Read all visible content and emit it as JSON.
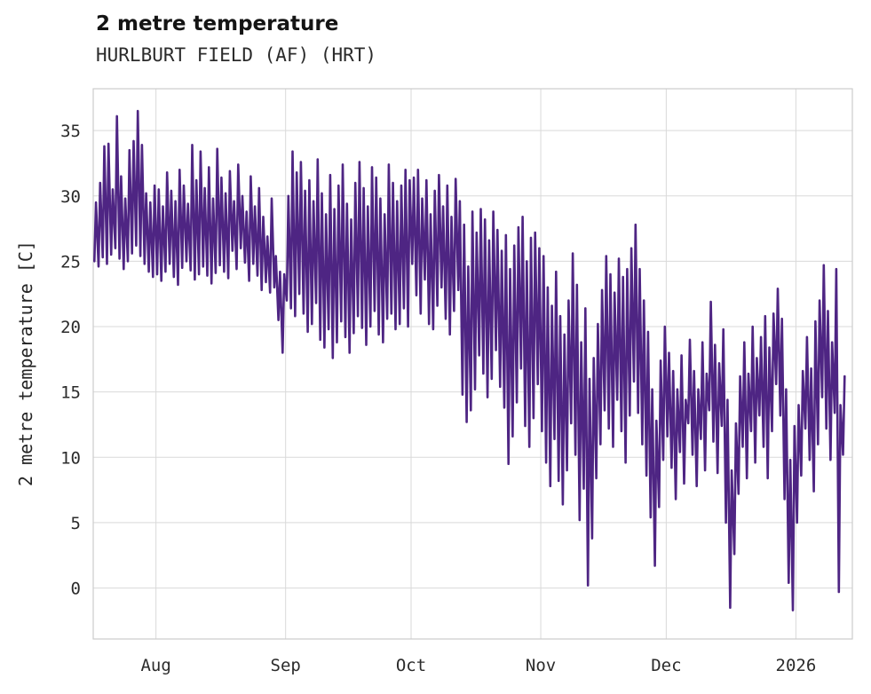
{
  "chart_data": {
    "type": "line",
    "title": "2 metre temperature",
    "subtitle": "HURLBURT FIELD (AF) (HRT)",
    "xlabel": "",
    "ylabel": "2 metre temperature [C]",
    "legend": "none",
    "grid": "on",
    "line_color": "#4e2583",
    "grid_color": "#d9d9d9",
    "border_color": "#cccccc",
    "text_color": "#2b2b2b",
    "ylim": [
      -3.9,
      38.2
    ],
    "xlim": [
      0,
      181.5
    ],
    "y_ticks": [
      0,
      5,
      10,
      15,
      20,
      25,
      30,
      35
    ],
    "x_ticks": [
      {
        "label": "Aug",
        "day": 15
      },
      {
        "label": "Sep",
        "day": 46
      },
      {
        "label": "Oct",
        "day": 76
      },
      {
        "label": "Nov",
        "day": 107
      },
      {
        "label": "Dec",
        "day": 137
      },
      {
        "label": "2026",
        "day": 168
      }
    ],
    "x_unit": "day_index_from_series_start",
    "series": [
      {
        "name": "2 metre temperature [C]",
        "daily_min": [
          25.0,
          24.6,
          25.3,
          24.8,
          25.5,
          26.0,
          25.2,
          24.4,
          25.0,
          25.6,
          26.2,
          25.4,
          24.8,
          24.2,
          23.8,
          24.0,
          23.5,
          24.2,
          24.8,
          23.8,
          23.2,
          24.5,
          25.0,
          24.3,
          23.6,
          24.0,
          24.6,
          23.9,
          23.3,
          24.1,
          24.7,
          24.2,
          23.7,
          25.8,
          24.4,
          26.0,
          24.9,
          23.5,
          24.8,
          23.9,
          22.8,
          23.4,
          22.6,
          23.0,
          20.5,
          18.0,
          22.0,
          21.4,
          20.8,
          22.5,
          21.0,
          19.6,
          20.2,
          21.8,
          19.0,
          18.4,
          19.8,
          17.6,
          18.8,
          20.4,
          19.2,
          18.0,
          19.5,
          20.8,
          19.9,
          18.6,
          20.0,
          21.2,
          19.4,
          18.8,
          20.6,
          21.0,
          19.8,
          20.2,
          21.4,
          20.0,
          24.8,
          22.4,
          21.0,
          23.6,
          20.2,
          19.8,
          21.6,
          23.0,
          20.6,
          19.4,
          21.2,
          22.8,
          14.8,
          12.7,
          13.6,
          15.2,
          17.8,
          16.4,
          14.6,
          16.0,
          18.2,
          15.4,
          13.8,
          9.5,
          11.6,
          14.2,
          16.8,
          12.4,
          10.8,
          13.0,
          15.6,
          12.0,
          9.6,
          7.8,
          11.4,
          8.2,
          6.4,
          9.0,
          12.6,
          10.2,
          5.2,
          7.6,
          0.2,
          3.8,
          8.4,
          11.0,
          13.6,
          12.2,
          10.8,
          14.4,
          12.0,
          9.6,
          13.2,
          15.8,
          13.4,
          11.0,
          8.6,
          5.4,
          1.7,
          6.2,
          9.8,
          11.6,
          9.2,
          6.8,
          10.4,
          8.0,
          12.6,
          10.2,
          7.8,
          11.4,
          9.0,
          13.6,
          11.2,
          8.8,
          12.4,
          5.0,
          -1.5,
          2.6,
          7.2,
          10.8,
          8.4,
          12.0,
          9.6,
          13.2,
          10.8,
          8.4,
          12.0,
          15.6,
          13.2,
          6.8,
          0.4,
          -1.7,
          5.0,
          8.6,
          12.2,
          9.8,
          7.4,
          11.0,
          14.6,
          12.2,
          9.8,
          13.4,
          -0.3,
          10.2
        ],
        "daily_max": [
          29.5,
          31.0,
          33.8,
          34.0,
          30.5,
          36.1,
          31.5,
          29.8,
          33.5,
          34.2,
          36.5,
          33.9,
          30.2,
          29.5,
          30.8,
          30.5,
          29.2,
          31.8,
          30.4,
          29.6,
          32.0,
          30.8,
          29.4,
          33.9,
          31.2,
          33.4,
          30.6,
          32.2,
          29.8,
          33.6,
          31.4,
          30.2,
          31.9,
          29.6,
          32.4,
          30.0,
          28.8,
          31.5,
          29.2,
          30.6,
          28.4,
          26.9,
          29.8,
          25.4,
          24.2,
          24.0,
          30.0,
          33.4,
          31.8,
          32.6,
          30.4,
          31.2,
          29.6,
          32.8,
          30.2,
          28.6,
          31.6,
          29.0,
          30.8,
          32.4,
          29.4,
          28.2,
          31.0,
          32.6,
          30.6,
          29.2,
          32.2,
          31.4,
          29.8,
          28.6,
          32.4,
          31.0,
          29.6,
          30.8,
          32.0,
          31.2,
          31.4,
          32.0,
          29.8,
          31.2,
          28.6,
          30.4,
          31.6,
          29.2,
          30.8,
          28.4,
          31.3,
          29.6,
          27.8,
          24.6,
          28.8,
          27.2,
          29.0,
          28.2,
          26.6,
          28.8,
          27.4,
          25.8,
          27.0,
          24.4,
          26.2,
          27.6,
          28.4,
          25.0,
          26.8,
          27.2,
          26.0,
          25.4,
          23.0,
          21.6,
          24.2,
          20.8,
          19.4,
          22.0,
          25.6,
          23.2,
          18.8,
          21.4,
          16.0,
          17.6,
          20.2,
          22.8,
          25.4,
          24.0,
          22.6,
          25.2,
          23.8,
          24.4,
          26.0,
          27.8,
          24.4,
          22.0,
          19.6,
          15.2,
          12.8,
          17.4,
          20.0,
          18.0,
          16.6,
          15.2,
          17.8,
          14.4,
          19.0,
          16.6,
          15.2,
          18.8,
          16.4,
          21.9,
          18.6,
          17.2,
          19.8,
          14.4,
          9.0,
          12.6,
          16.2,
          18.8,
          16.4,
          20.0,
          17.6,
          19.2,
          20.8,
          18.4,
          21.0,
          22.9,
          20.6,
          15.2,
          9.8,
          12.4,
          14.0,
          16.6,
          19.2,
          16.8,
          20.4,
          22.0,
          24.7,
          21.2,
          18.8,
          24.4,
          14.0,
          16.2
        ]
      }
    ]
  }
}
